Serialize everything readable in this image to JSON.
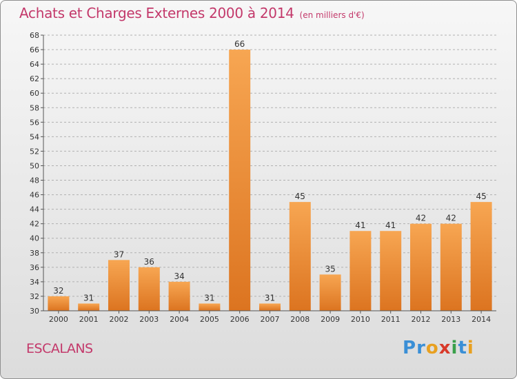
{
  "title": "Achats et Charges Externes 2000 à 2014",
  "subtitle": "(en milliers d'€)",
  "commune": "ESCALANS",
  "logo": {
    "text": "Proxiti",
    "letters": [
      "P",
      "r",
      "o",
      "x",
      "i",
      "t",
      "i"
    ],
    "colors": [
      "#3a8fd6",
      "#3a8fd6",
      "#e8a020",
      "#d83a2a",
      "#3aa04a",
      "#3a8fd6",
      "#e8a020"
    ]
  },
  "colors": {
    "bar_light": "#f7a652",
    "bar_dark": "#dc7420",
    "title": "#c3386a",
    "grid": "#b0b0b0"
  },
  "chart_data": {
    "type": "bar",
    "title": "Achats et Charges Externes 2000 à 2014",
    "subtitle": "(en milliers d'€)",
    "xlabel": "",
    "ylabel": "",
    "categories": [
      "2000",
      "2001",
      "2002",
      "2003",
      "2004",
      "2005",
      "2006",
      "2007",
      "2008",
      "2009",
      "2010",
      "2011",
      "2012",
      "2013",
      "2014"
    ],
    "values": [
      32,
      31,
      37,
      36,
      34,
      31,
      66,
      31,
      45,
      35,
      41,
      41,
      42,
      42,
      45
    ],
    "ylim": [
      30,
      68
    ],
    "ytick_step": 2,
    "grid": "horizontal dashed",
    "data_labels": true
  }
}
